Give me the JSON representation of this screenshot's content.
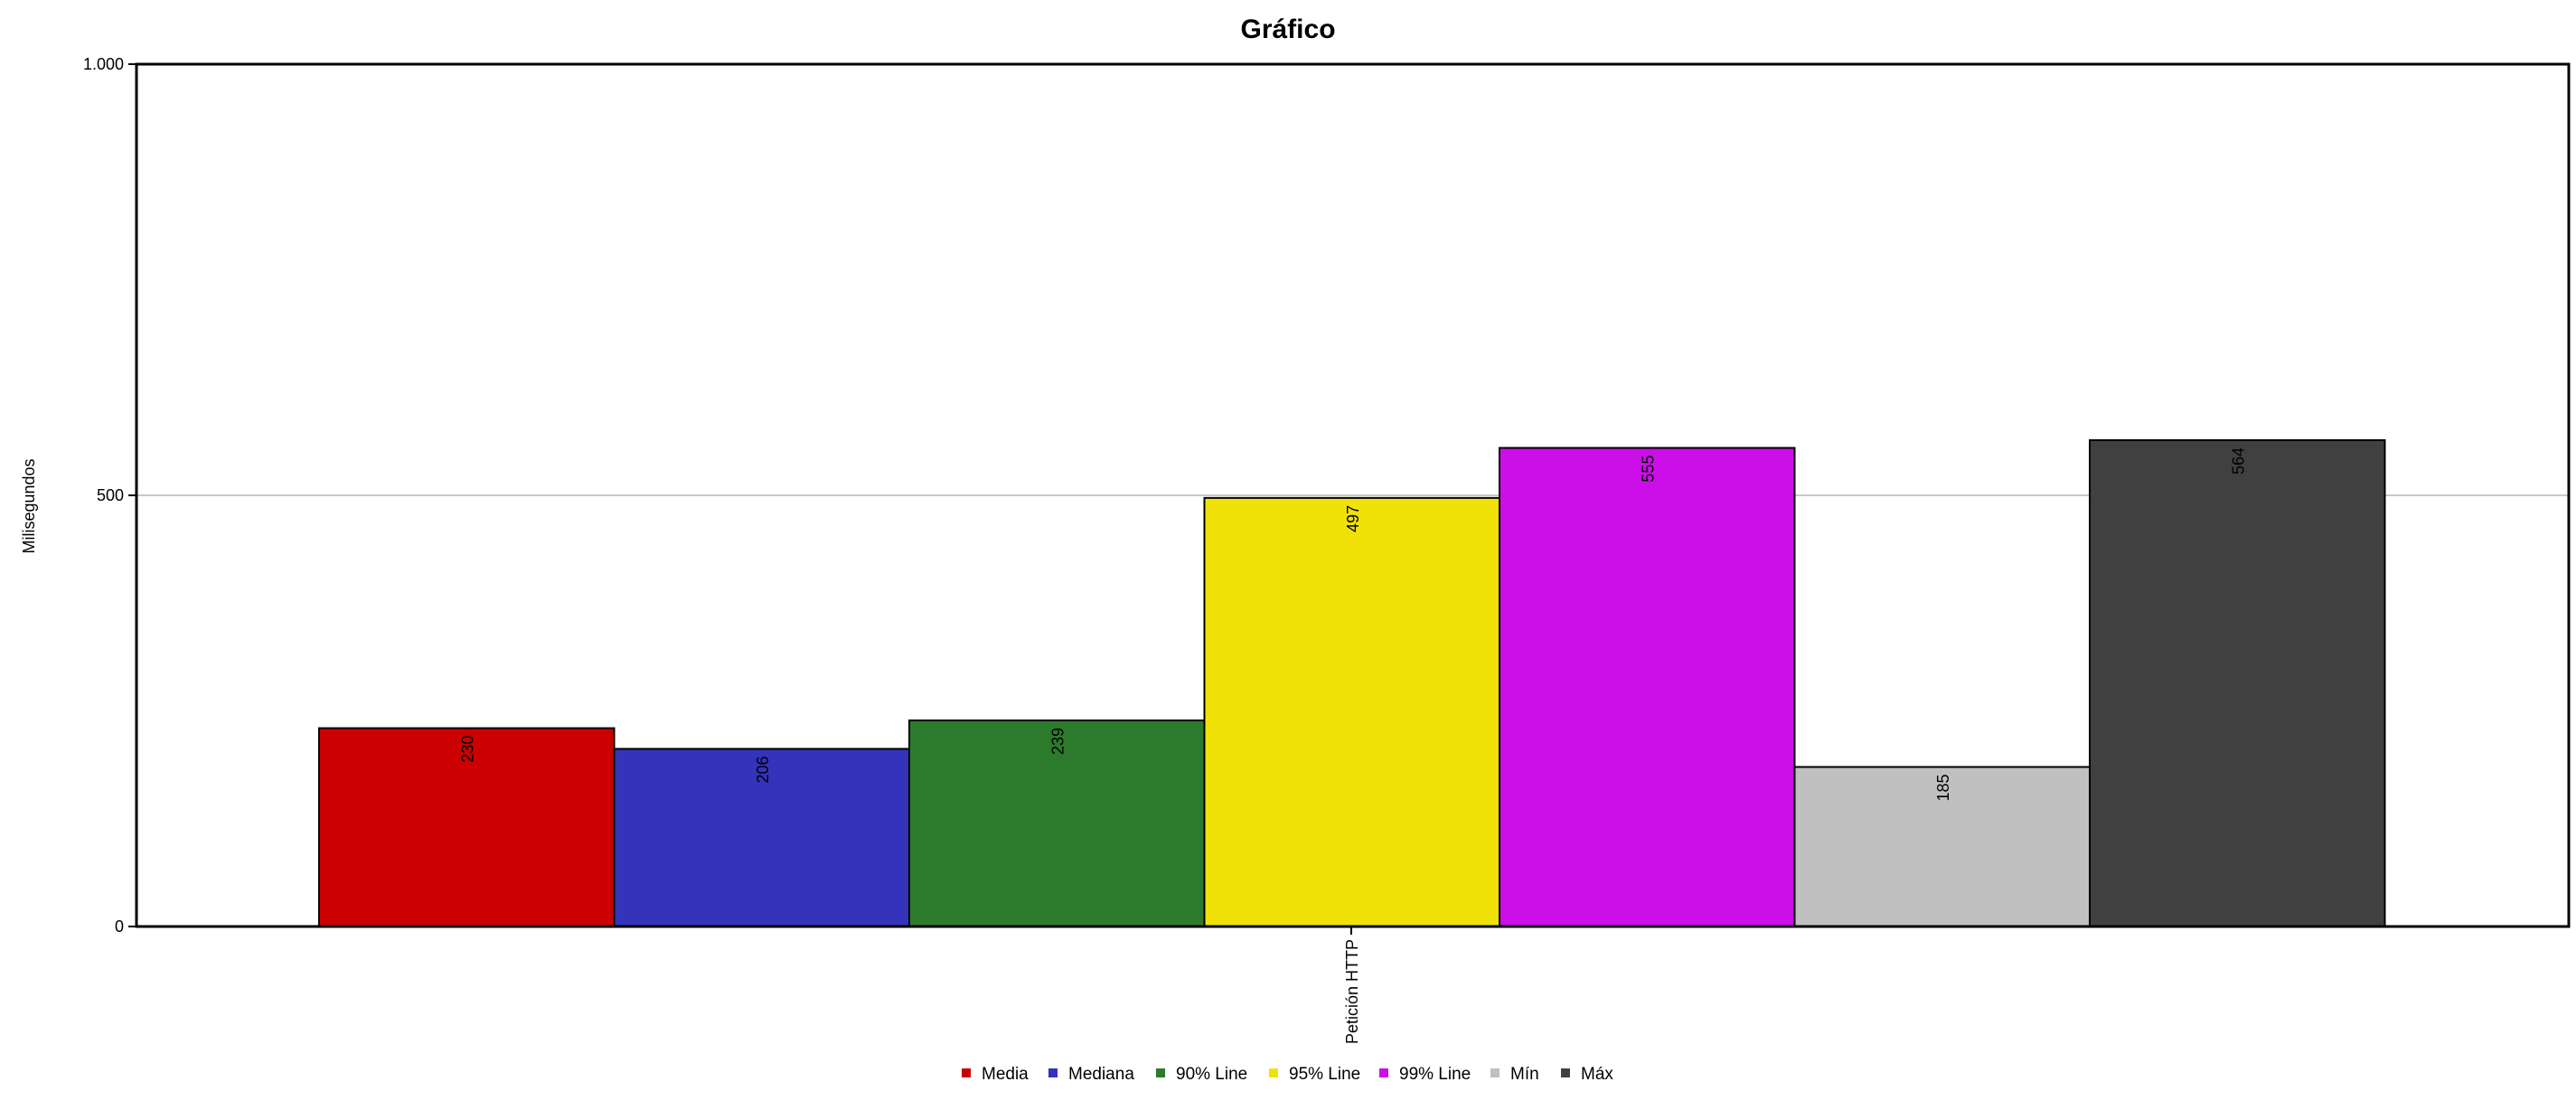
{
  "chart_data": {
    "type": "bar",
    "title": "Gráfico",
    "xlabel": "",
    "ylabel": "Milisegundos",
    "ylim": [
      0,
      1000
    ],
    "y_ticks": [
      {
        "value": 0,
        "label": "0"
      },
      {
        "value": 500,
        "label": "500"
      },
      {
        "value": 1000,
        "label": "1.000"
      }
    ],
    "categories": [
      "Petición HTTP"
    ],
    "series": [
      {
        "name": "Media",
        "color": "#cc0000",
        "values": [
          230
        ]
      },
      {
        "name": "Mediana",
        "color": "#3333bb",
        "values": [
          206
        ]
      },
      {
        "name": "90% Line",
        "color": "#2c7b2c",
        "values": [
          239
        ]
      },
      {
        "name": "95% Line",
        "color": "#f0e207",
        "values": [
          497
        ]
      },
      {
        "name": "99% Line",
        "color": "#cc0ee8",
        "values": [
          555
        ]
      },
      {
        "name": "Mín",
        "color": "#c0c0c0",
        "values": [
          185
        ]
      },
      {
        "name": "Máx",
        "color": "#404040",
        "values": [
          564
        ]
      }
    ],
    "grid": true,
    "legend_position": "bottom"
  }
}
